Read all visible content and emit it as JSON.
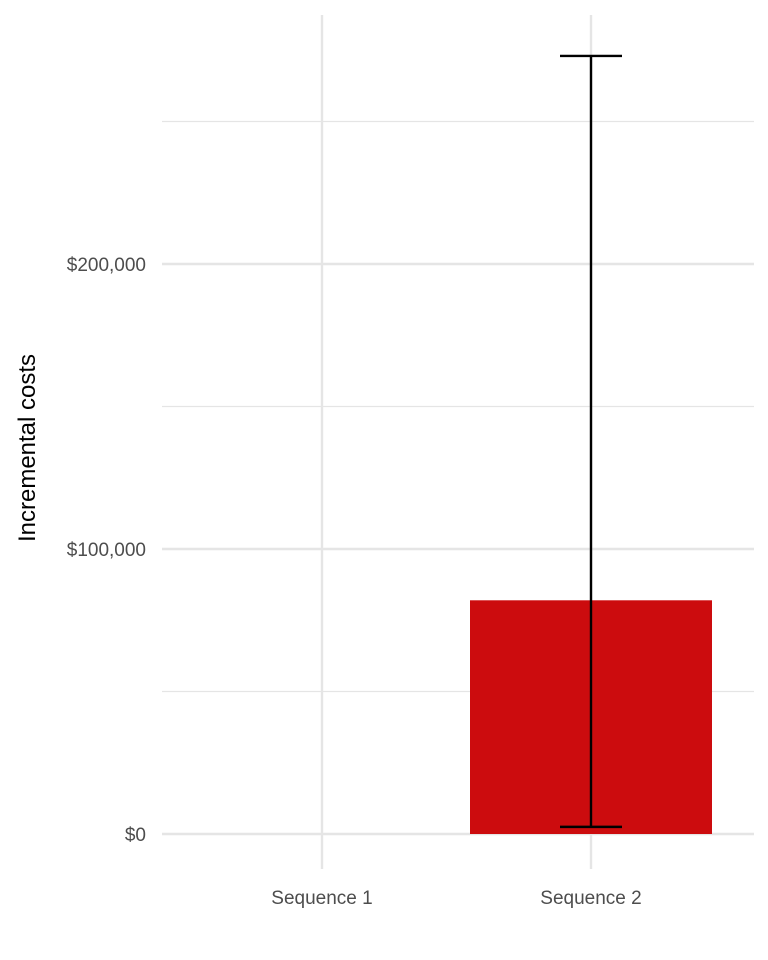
{
  "chart_data": {
    "type": "bar",
    "title": "",
    "xlabel": "",
    "ylabel": "Incremental costs",
    "categories": [
      "Sequence 1",
      "Sequence 2"
    ],
    "values": [
      0,
      82000
    ],
    "error_bars": [
      {
        "category": "Sequence 1",
        "low": null,
        "high": null
      },
      {
        "category": "Sequence 2",
        "low": 2500,
        "high": 273000
      }
    ],
    "ylim": [
      -12000,
      288000
    ],
    "y_ticks": [
      0,
      100000,
      200000
    ],
    "y_tick_labels": [
      "$0",
      "$100,000",
      "$200,000"
    ],
    "y_minor_ticks": [
      50000,
      150000,
      250000
    ],
    "grid": true,
    "legend": "none",
    "colors": {
      "bar": "#cc0c0e",
      "error_bar": "#000000",
      "grid": "#e5e5e5",
      "tick_text": "#4d4d4d",
      "background": "#ffffff"
    }
  }
}
